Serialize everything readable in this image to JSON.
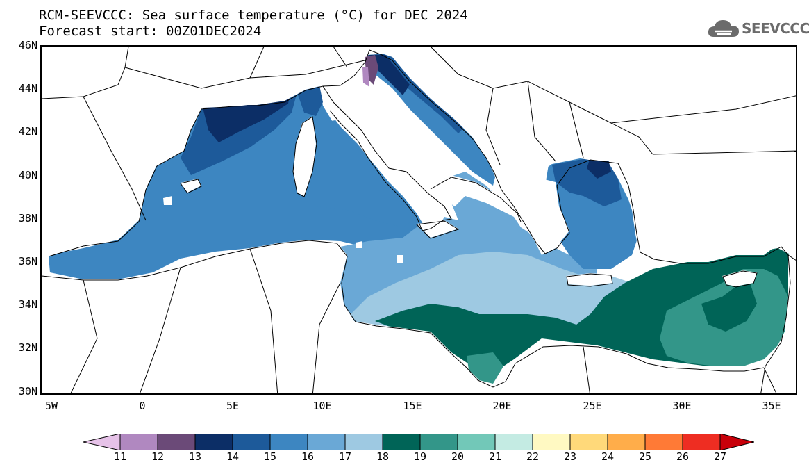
{
  "header": {
    "title_line1": "RCM-SEEVCCC: Sea surface temperature (°C) for DEC 2024",
    "title_line2": "Forecast start: 00Z01DEC2024"
  },
  "logo": {
    "text": "SEEVCCC",
    "icon": "cloud-icon",
    "color": "#6b6b6b"
  },
  "map": {
    "region": "Mediterranean Sea",
    "lon_range": [
      -5.5,
      36.5
    ],
    "lat_range": [
      29.8,
      46
    ],
    "lat_ticks": [
      "46N",
      "44N",
      "42N",
      "40N",
      "38N",
      "36N",
      "34N",
      "32N",
      "30N"
    ],
    "lon_ticks": [
      "5W",
      "0",
      "5E",
      "10E",
      "15E",
      "20E",
      "25E",
      "30E",
      "35E"
    ]
  },
  "colorbar": {
    "labels": [
      "11",
      "12",
      "13",
      "14",
      "15",
      "16",
      "17",
      "18",
      "19",
      "20",
      "21",
      "22",
      "23",
      "24",
      "25",
      "26",
      "27"
    ],
    "colors": [
      "#e6c2e8",
      "#b088c0",
      "#6b4a78",
      "#0c2e66",
      "#1d5a9a",
      "#3d86c1",
      "#6aa8d6",
      "#9ec9e2",
      "#006457",
      "#339689",
      "#72c8b8",
      "#c4ebe3",
      "#fff9c2",
      "#ffd97a",
      "#ffad4a",
      "#ff7a36",
      "#ee2d22",
      "#c8000a"
    ]
  }
}
